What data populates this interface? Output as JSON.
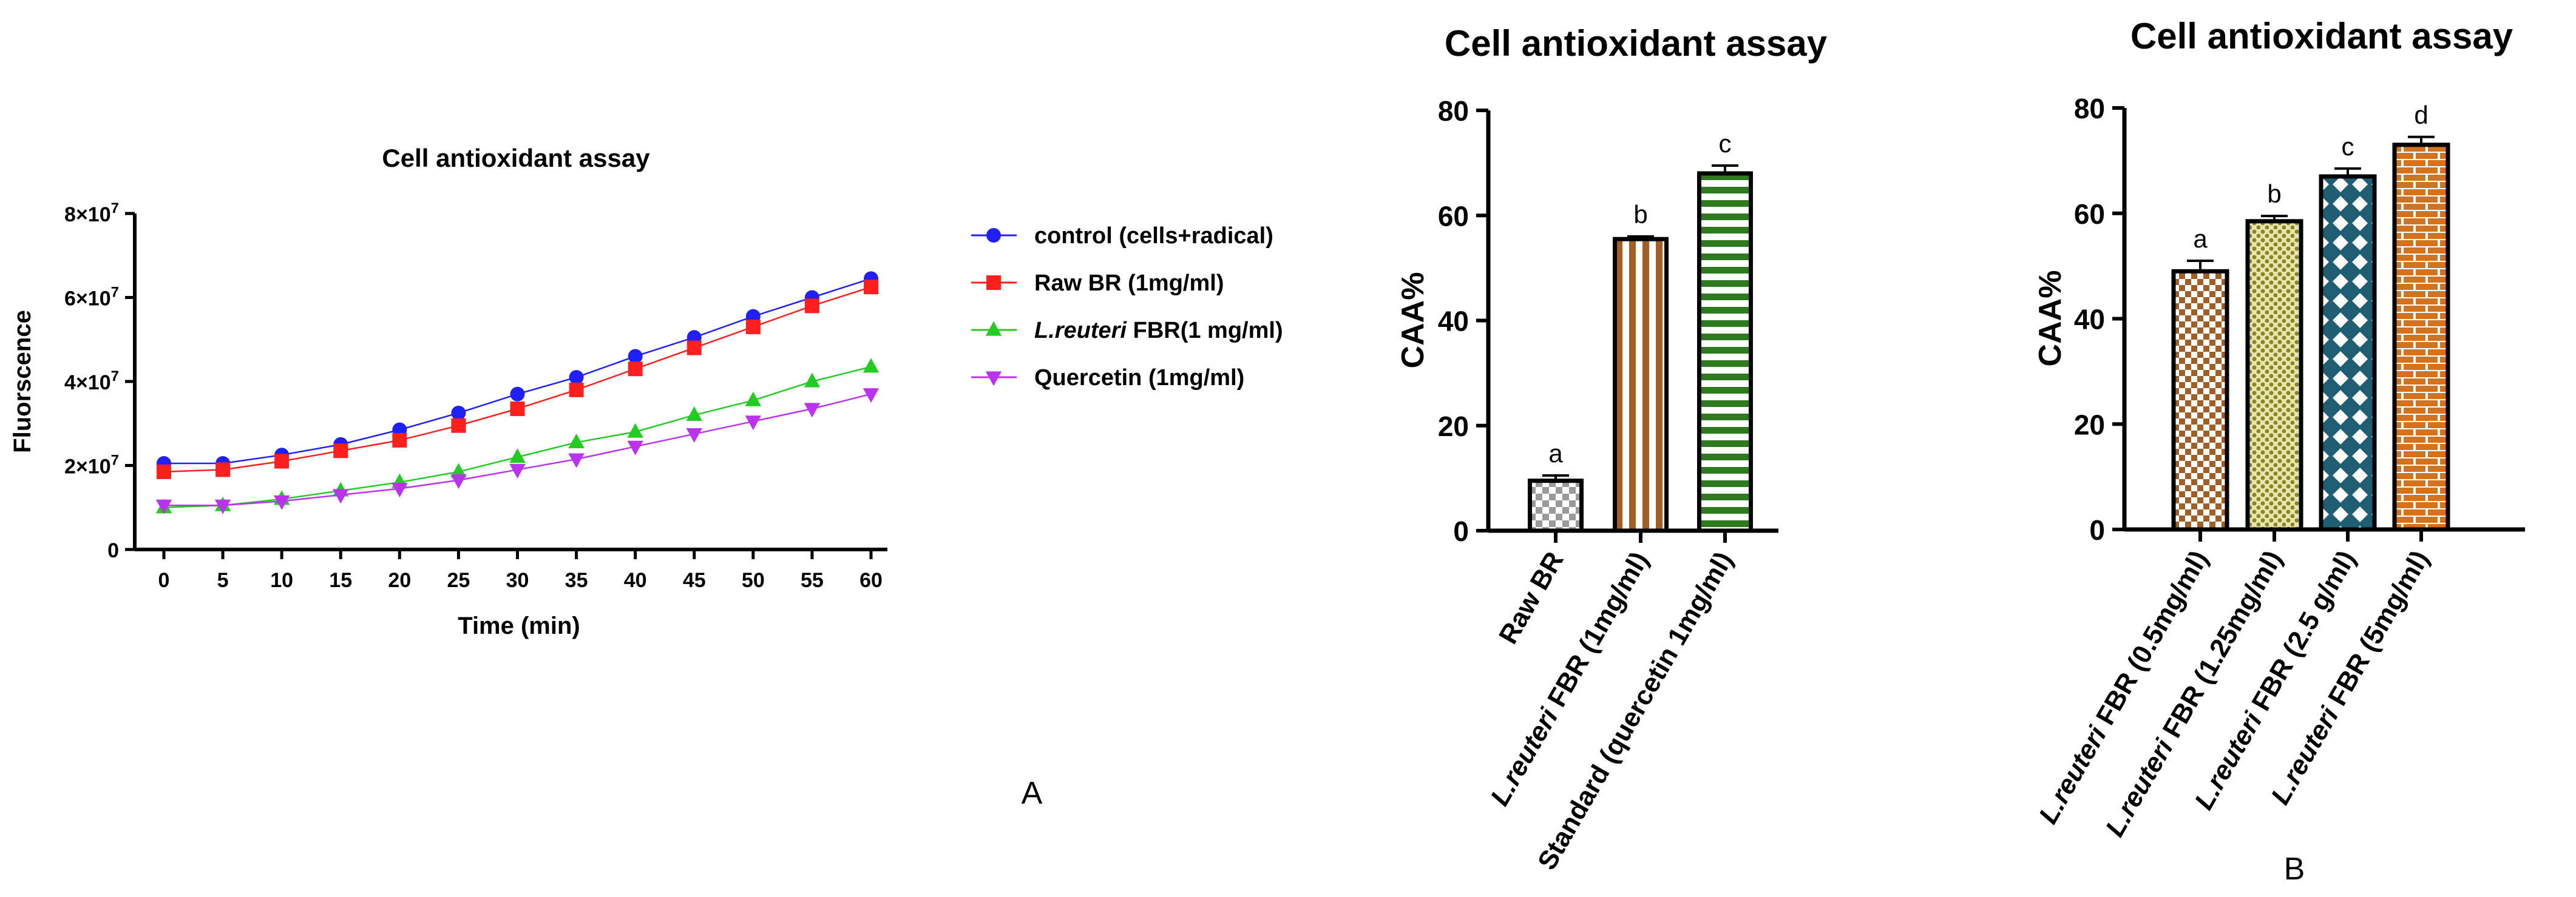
{
  "figure": {
    "panel_labels": [
      "A",
      "B"
    ]
  },
  "colors": {
    "control": "#1f1fff",
    "raw_br": "#ff1f1f",
    "lreuteri": "#22cc22",
    "quercetin": "#bb33ee",
    "brown": "#a05f26",
    "green": "#2d7a1f",
    "olive": "#b8b43a",
    "teal": "#1f5e73",
    "orange": "#d4731f",
    "gray": "#9a9a9a"
  },
  "chart_data": [
    {
      "id": "line",
      "type": "line",
      "title": "Cell antioxidant assay",
      "xlabel": "Time (min)",
      "ylabel": "Fluorscence",
      "xlim": [
        0,
        60
      ],
      "ylim": [
        0,
        80000000
      ],
      "x": [
        0,
        5,
        10,
        15,
        20,
        25,
        30,
        35,
        40,
        45,
        50,
        55,
        60
      ],
      "yticks": [
        0,
        20000000,
        40000000,
        60000000,
        80000000
      ],
      "ytick_labels": [
        {
          "base": "0",
          "exp": ""
        },
        {
          "base": "2×10",
          "exp": "7"
        },
        {
          "base": "4×10",
          "exp": "7"
        },
        {
          "base": "6×10",
          "exp": "7"
        },
        {
          "base": "8×10",
          "exp": "7"
        }
      ],
      "series": [
        {
          "key": "control",
          "name": "control (cells+radical)",
          "italic_prefix": "",
          "marker": "circle",
          "values": [
            20500000,
            20500000,
            22500000,
            25000000,
            28500000,
            32500000,
            37000000,
            41000000,
            46000000,
            50500000,
            55500000,
            60000000,
            64500000
          ]
        },
        {
          "key": "raw_br",
          "name": "Raw BR (1mg/ml)",
          "italic_prefix": "",
          "marker": "square",
          "values": [
            18500000,
            19000000,
            21000000,
            23500000,
            26000000,
            29500000,
            33500000,
            38000000,
            43000000,
            48000000,
            53000000,
            58000000,
            62500000
          ]
        },
        {
          "key": "lreuteri",
          "name": "FBR(1 mg/ml)",
          "italic_prefix": "L.reuteri",
          "marker": "triangle",
          "values": [
            10000000,
            10500000,
            12000000,
            14000000,
            16000000,
            18500000,
            22000000,
            25500000,
            28000000,
            32000000,
            35500000,
            40000000,
            43500000
          ]
        },
        {
          "key": "quercetin",
          "name": "Quercetin (1mg/ml)",
          "italic_prefix": "",
          "marker": "triangle-down",
          "values": [
            10500000,
            10500000,
            11500000,
            13000000,
            14500000,
            16500000,
            19000000,
            21500000,
            24500000,
            27500000,
            30500000,
            33500000,
            37000000
          ]
        }
      ]
    },
    {
      "id": "bar1",
      "type": "bar",
      "title": "Cell antioxidant assay",
      "ylabel": "CAA%",
      "ylim": [
        0,
        80
      ],
      "yticks": [
        0,
        20,
        40,
        60,
        80
      ],
      "categories": [
        {
          "italic": "",
          "text": "Raw BR"
        },
        {
          "italic": "L.reuteri",
          "text": " FBR (1mg/ml)"
        },
        {
          "italic": "",
          "text": "Standard (quercetin 1mg/ml)"
        }
      ],
      "values": [
        9.5,
        55.5,
        68
      ],
      "errors": [
        1.0,
        0.5,
        1.5
      ],
      "letters": [
        "a",
        "b",
        "c"
      ],
      "patterns": [
        "checker-gray",
        "vstripe-brown",
        "hstripe-green"
      ]
    },
    {
      "id": "bar2",
      "type": "bar",
      "title": "Cell antioxidant assay",
      "ylabel": "CAA%",
      "ylim": [
        0,
        80
      ],
      "yticks": [
        0,
        20,
        40,
        60,
        80
      ],
      "categories": [
        {
          "italic": "L.reuteri",
          "text": " FBR (0.5mg/ml)"
        },
        {
          "italic": "L.reuteri",
          "text": " FBR (1.25mg/ml)"
        },
        {
          "italic": "L.reuteri",
          "text": " FBR (2.5 g/ml)"
        },
        {
          "italic": "L.reuteri",
          "text": " FBR (5mg/ml)"
        }
      ],
      "values": [
        49,
        58.5,
        67,
        73
      ],
      "errors": [
        2.0,
        1.0,
        1.5,
        1.5
      ],
      "letters": [
        "a",
        "b",
        "c",
        "d"
      ],
      "patterns": [
        "checker-brown",
        "dots-olive",
        "diamond-teal",
        "brick-orange"
      ]
    }
  ]
}
